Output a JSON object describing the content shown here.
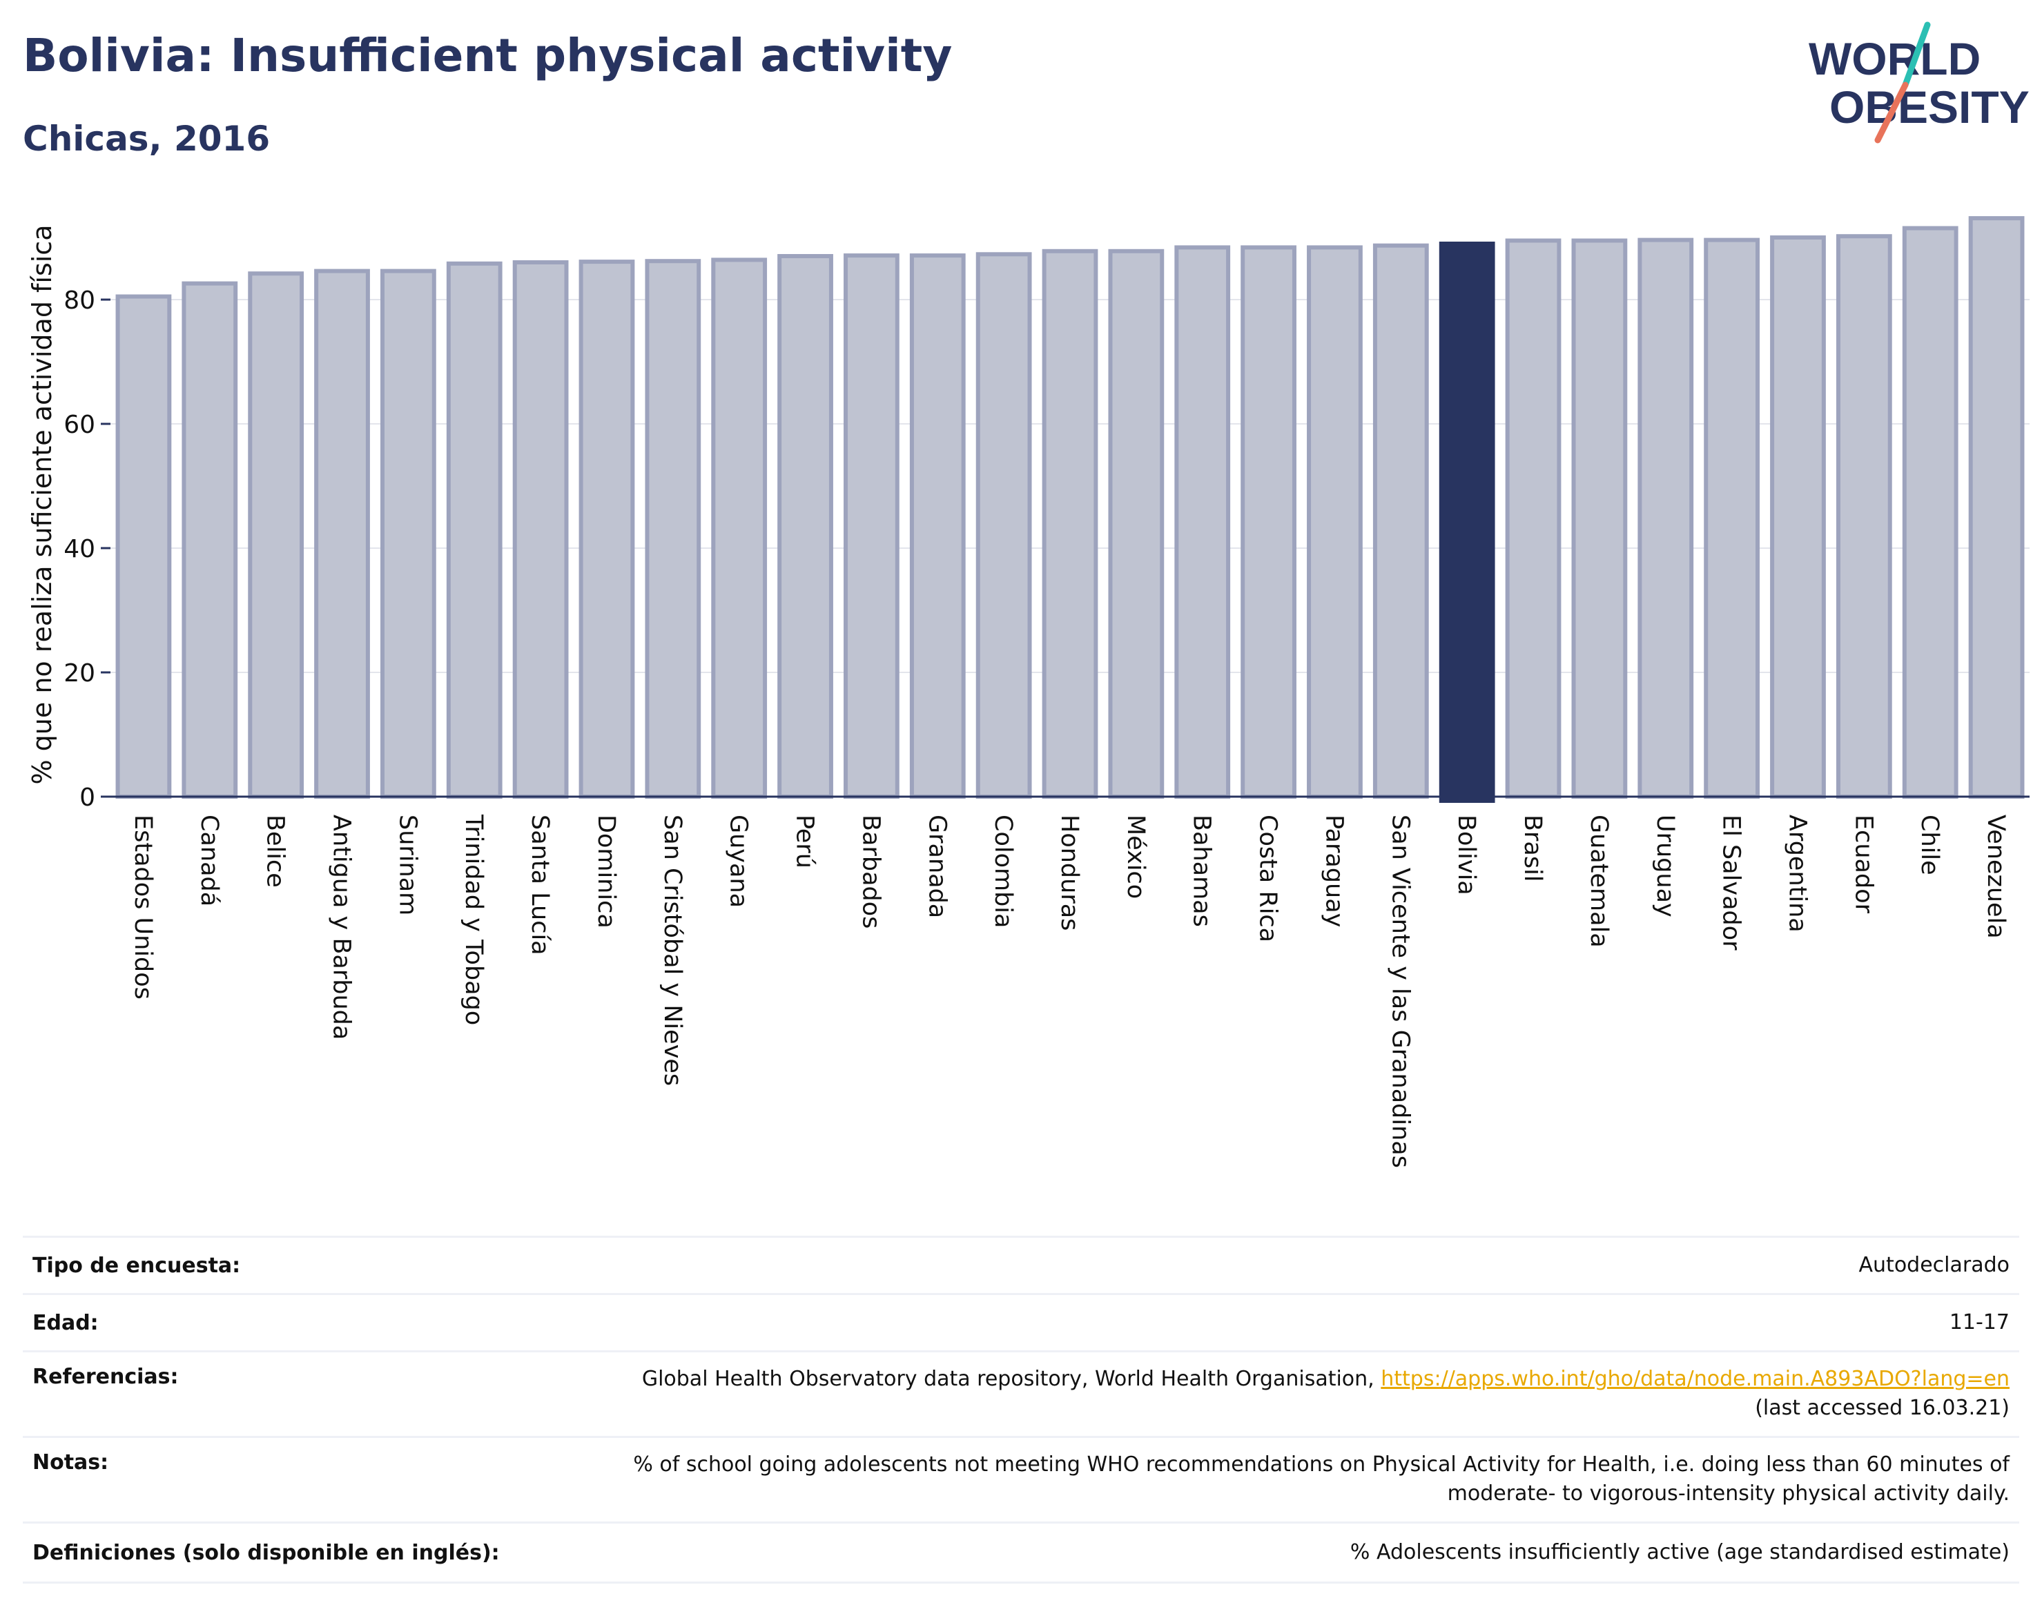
{
  "header": {
    "title": "Bolivia: Insufficient physical activity",
    "subtitle": "Chicas, 2016"
  },
  "logo": {
    "line1": "WORLD",
    "line2": "OBESITY",
    "accent_teal": "#2bbfb3",
    "accent_coral": "#e8735a"
  },
  "colors": {
    "bar": "#bfc3d1",
    "bar_stroke": "#9da3bd",
    "highlight": "#283460",
    "grid": "#e3e5ec",
    "axis": "#283460"
  },
  "chart_data": {
    "type": "bar",
    "title": "Bolivia: Insufficient physical activity",
    "subtitle": "Chicas, 2016",
    "xlabel": "",
    "ylabel": "% que no realiza suficiente actividad física",
    "ylim": [
      0,
      95
    ],
    "yticks": [
      0,
      20,
      40,
      60,
      80
    ],
    "grid": true,
    "highlight_category": "Bolivia",
    "categories": [
      "Estados Unidos",
      "Canadá",
      "Belice",
      "Antigua y Barbuda",
      "Surinam",
      "Trinidad y Tobago",
      "Santa Lucía",
      "Dominica",
      "San Cristóbal y Nieves",
      "Guyana",
      "Perú",
      "Barbados",
      "Granada",
      "Colombia",
      "Honduras",
      "México",
      "Bahamas",
      "Costa Rica",
      "Paraguay",
      "San Vicente y las Granadinas",
      "Bolivia",
      "Brasil",
      "Guatemala",
      "Uruguay",
      "El Salvador",
      "Argentina",
      "Ecuador",
      "Chile",
      "Venezuela"
    ],
    "values": [
      80.5,
      82.6,
      84.2,
      84.6,
      84.6,
      85.8,
      86.0,
      86.1,
      86.2,
      86.4,
      87.0,
      87.1,
      87.1,
      87.3,
      87.8,
      87.8,
      88.4,
      88.4,
      88.4,
      88.7,
      89.0,
      89.5,
      89.5,
      89.6,
      89.6,
      90.0,
      90.2,
      91.5,
      93.1
    ]
  },
  "meta": [
    {
      "label": "Tipo de encuesta:",
      "value": "Autodeclarado"
    },
    {
      "label": "Edad:",
      "value": "11-17"
    },
    {
      "label": "Referencias:",
      "value": "Global Health Observatory data repository, World Health Organisation,",
      "link": "https://apps.who.int/gho/data/node.main.A893ADO?lang=en",
      "value2": "(last accessed 16.03.21)"
    },
    {
      "label": "Notas:",
      "value": "% of school going adolescents not meeting WHO recommendations on Physical Activity for Health, i.e. doing less than 60 minutes of",
      "value2": "moderate- to vigorous-intensity physical activity daily."
    },
    {
      "label": "Definiciones (solo disponible en inglés):",
      "value": "% Adolescents insufficiently active (age standardised estimate)"
    }
  ]
}
